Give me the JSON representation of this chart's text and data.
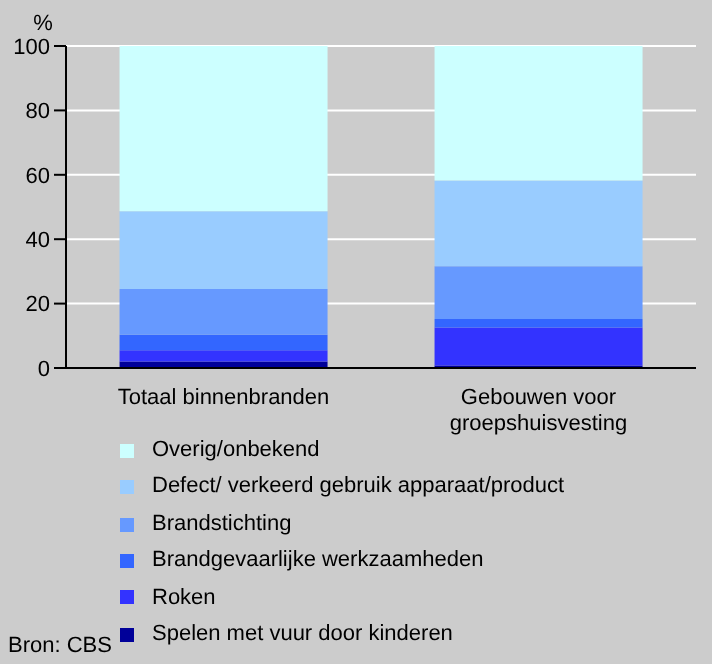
{
  "chart_data": {
    "type": "bar",
    "stacked": true,
    "ylabel": "%",
    "categories": [
      "Totaal binnenbranden",
      "Gebouwen voor groepshuisvesting"
    ],
    "series": [
      {
        "name": "Spelen met vuur door kinderen",
        "color": "#000099",
        "values": [
          2.0,
          0.8
        ]
      },
      {
        "name": "Roken",
        "color": "#3333ff",
        "values": [
          3.5,
          11.8
        ]
      },
      {
        "name": "Brandgevaarlijke werkzaamheden",
        "color": "#3366ff",
        "values": [
          4.8,
          2.6
        ]
      },
      {
        "name": "Brandstichting",
        "color": "#6699ff",
        "values": [
          14.2,
          16.4
        ]
      },
      {
        "name": "Defect/ verkeerd gebruik apparaat/product",
        "color": "#99ccff",
        "values": [
          24.2,
          26.6
        ]
      },
      {
        "name": "Overig/onbekend",
        "color": "#ccffff",
        "values": [
          51.3,
          41.8
        ]
      }
    ],
    "ylim": [
      0,
      100
    ],
    "yticks": [
      0,
      20,
      40,
      60,
      80,
      100
    ],
    "grid": "y",
    "legend": "bottom",
    "annotations": [
      "Bron: CBS"
    ]
  }
}
